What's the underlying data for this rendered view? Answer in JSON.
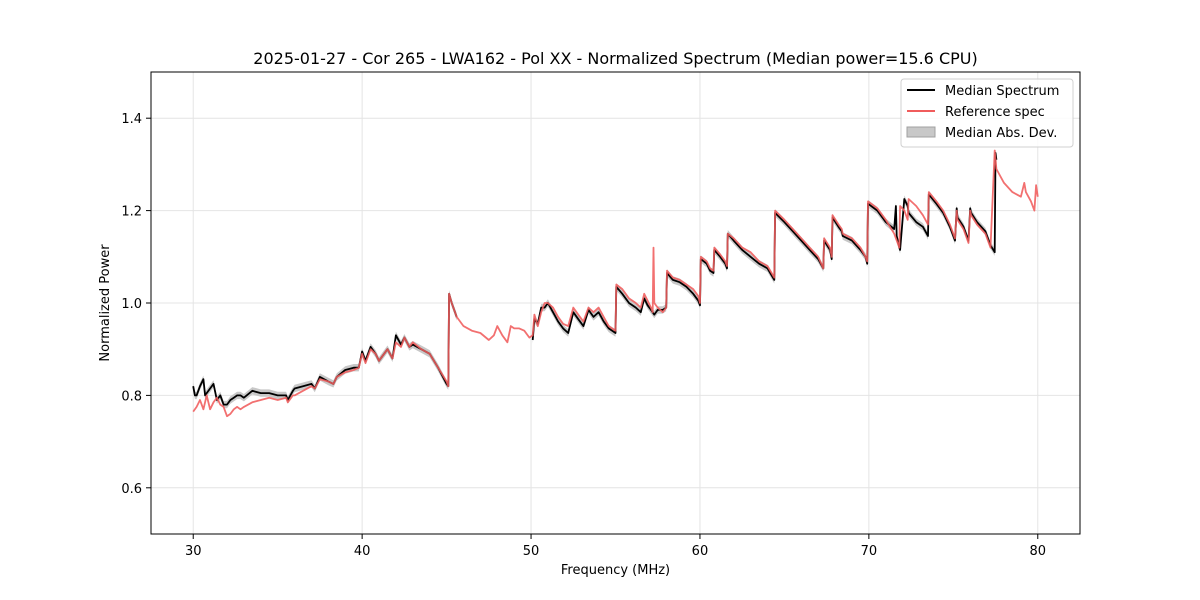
{
  "chart_data": {
    "type": "line",
    "title": "2025-01-27 - Cor 265 - LWA162 - Pol XX - Normalized Spectrum (Median power=15.6 CPU)",
    "xlabel": "Frequency (MHz)",
    "ylabel": "Normalized Power",
    "xlim": [
      27.5,
      82.5
    ],
    "ylim": [
      0.5,
      1.5
    ],
    "xticks": [
      30,
      40,
      50,
      60,
      70,
      80
    ],
    "yticks": [
      0.6,
      0.8,
      1.0,
      1.2,
      1.4
    ],
    "xtick_labels": [
      "30",
      "40",
      "50",
      "60",
      "70",
      "80"
    ],
    "ytick_labels": [
      "0.6",
      "0.8",
      "1.0",
      "1.2",
      "1.4"
    ],
    "grid": true,
    "legend_position": "top-right",
    "legend": [
      {
        "label": "Median Spectrum",
        "kind": "line",
        "color": "#000000"
      },
      {
        "label": "Reference spec",
        "kind": "line",
        "color": "#f05c5c"
      },
      {
        "label": "Median Abs. Dev.",
        "kind": "patch",
        "color": "#c8c8c8"
      }
    ],
    "series": [
      {
        "name": "Reference spec",
        "color": "#f05c5c",
        "x": [
          30.0,
          30.2,
          30.4,
          30.6,
          30.8,
          31.0,
          31.2,
          31.4,
          31.6,
          31.8,
          32.0,
          32.2,
          32.4,
          32.6,
          32.8,
          33.0,
          33.5,
          34.0,
          34.5,
          35.0,
          35.5,
          35.6,
          35.9,
          36.0,
          36.5,
          37.0,
          37.2,
          37.5,
          38.0,
          38.3,
          38.5,
          39.0,
          39.5,
          39.8,
          40.0,
          40.2,
          40.5,
          40.8,
          41.0,
          41.5,
          41.8,
          42.0,
          42.3,
          42.5,
          42.8,
          43.0,
          43.5,
          44.0,
          44.5,
          45.0,
          45.1,
          45.15,
          45.3,
          45.6,
          46.0,
          46.5,
          47.0,
          47.5,
          47.8,
          48.0,
          48.3,
          48.6,
          48.8,
          49.0,
          49.3,
          49.6,
          49.9,
          50.1,
          50.2,
          50.4,
          50.6,
          50.8,
          51.0,
          51.3,
          51.6,
          51.9,
          52.2,
          52.5,
          52.8,
          53.1,
          53.4,
          53.7,
          54.0,
          54.3,
          54.6,
          55.0,
          55.05,
          55.4,
          55.8,
          56.2,
          56.5,
          56.7,
          56.9,
          57.1,
          57.2,
          57.25,
          57.3,
          57.5,
          57.8,
          58.0,
          58.05,
          58.4,
          58.8,
          59.2,
          59.6,
          59.9,
          60.0,
          60.05,
          60.4,
          60.6,
          60.8,
          60.85,
          61.2,
          61.5,
          61.6,
          61.65,
          62.0,
          62.5,
          63.0,
          63.5,
          64.0,
          64.4,
          64.45,
          65.0,
          65.5,
          66.0,
          66.5,
          67.0,
          67.3,
          67.35,
          67.7,
          67.8,
          67.85,
          68.2,
          68.4,
          68.45,
          69.0,
          69.5,
          69.8,
          69.9,
          69.95,
          70.5,
          71.0,
          71.5,
          71.8,
          71.85,
          72.1,
          72.3,
          72.35,
          72.8,
          73.2,
          73.5,
          73.55,
          74.0,
          74.4,
          74.8,
          75.1,
          75.2,
          75.25,
          75.6,
          75.9,
          76.0,
          76.05,
          76.4,
          76.9,
          77.0,
          77.2,
          77.45,
          77.5,
          77.55,
          78.0,
          78.5,
          79.0,
          79.2,
          79.3,
          79.6,
          79.8,
          79.9,
          80.0
        ],
        "y": [
          0.765,
          0.775,
          0.79,
          0.77,
          0.8,
          0.77,
          0.785,
          0.795,
          0.78,
          0.775,
          0.755,
          0.76,
          0.77,
          0.775,
          0.77,
          0.775,
          0.785,
          0.79,
          0.795,
          0.79,
          0.795,
          0.785,
          0.8,
          0.8,
          0.81,
          0.82,
          0.815,
          0.835,
          0.83,
          0.825,
          0.84,
          0.85,
          0.855,
          0.86,
          0.89,
          0.87,
          0.9,
          0.89,
          0.875,
          0.9,
          0.88,
          0.915,
          0.905,
          0.925,
          0.905,
          0.915,
          0.9,
          0.89,
          0.86,
          0.83,
          0.82,
          1.02,
          1.0,
          0.97,
          0.95,
          0.94,
          0.935,
          0.92,
          0.93,
          0.95,
          0.93,
          0.915,
          0.95,
          0.945,
          0.945,
          0.94,
          0.925,
          0.93,
          0.975,
          0.95,
          0.98,
          1.0,
          1.0,
          0.99,
          0.97,
          0.955,
          0.95,
          0.99,
          0.975,
          0.96,
          0.99,
          0.98,
          0.99,
          0.97,
          0.95,
          0.94,
          1.04,
          1.03,
          1.01,
          1.0,
          0.99,
          1.02,
          1.005,
          0.99,
          0.98,
          1.12,
          1.0,
          0.99,
          0.98,
          0.99,
          1.07,
          1.055,
          1.05,
          1.04,
          1.03,
          1.015,
          1.0,
          1.1,
          1.09,
          1.075,
          1.07,
          1.12,
          1.105,
          1.09,
          1.08,
          1.15,
          1.14,
          1.12,
          1.11,
          1.09,
          1.08,
          1.055,
          1.2,
          1.18,
          1.16,
          1.14,
          1.12,
          1.1,
          1.075,
          1.14,
          1.12,
          1.1,
          1.19,
          1.17,
          1.16,
          1.15,
          1.14,
          1.12,
          1.1,
          1.09,
          1.22,
          1.205,
          1.18,
          1.15,
          1.12,
          1.21,
          1.2,
          1.18,
          1.225,
          1.21,
          1.19,
          1.17,
          1.24,
          1.22,
          1.2,
          1.17,
          1.14,
          1.2,
          1.18,
          1.16,
          1.13,
          1.2,
          1.19,
          1.17,
          1.15,
          1.14,
          1.12,
          1.33,
          1.31,
          1.29,
          1.26,
          1.24,
          1.23,
          1.26,
          1.24,
          1.22,
          1.2,
          1.255,
          1.23
        ],
        "dy": []
      },
      {
        "name": "Median Spectrum",
        "color": "#000000",
        "x": [
          30.0,
          30.1,
          30.2,
          30.4,
          30.6,
          30.7,
          30.8,
          31.0,
          31.2,
          31.4,
          31.6,
          31.8,
          32.0,
          32.2,
          32.4,
          32.6,
          32.8,
          33.0,
          33.5,
          34.0,
          34.5,
          35.0,
          35.5,
          35.6,
          35.9,
          36.0,
          36.5,
          37.0,
          37.2,
          37.5,
          38.0,
          38.3,
          38.5,
          39.0,
          39.5,
          39.8,
          40.0,
          40.2,
          40.5,
          40.8,
          41.0,
          41.5,
          41.8,
          42.0,
          42.3,
          42.5,
          42.8,
          43.0,
          43.5,
          44.0,
          44.5,
          45.0,
          45.1,
          45.15,
          45.3,
          45.6
        ],
        "y": [
          0.82,
          0.8,
          0.8,
          0.82,
          0.835,
          0.8,
          0.805,
          0.815,
          0.825,
          0.79,
          0.8,
          0.78,
          0.78,
          0.79,
          0.795,
          0.8,
          0.8,
          0.795,
          0.81,
          0.805,
          0.805,
          0.8,
          0.8,
          0.79,
          0.81,
          0.815,
          0.82,
          0.825,
          0.815,
          0.84,
          0.83,
          0.825,
          0.84,
          0.855,
          0.86,
          0.86,
          0.895,
          0.875,
          0.905,
          0.89,
          0.875,
          0.9,
          0.88,
          0.93,
          0.91,
          0.925,
          0.905,
          0.91,
          0.9,
          0.89,
          0.86,
          0.825,
          0.82,
          1.02,
          1.0,
          0.97
        ]
      },
      {
        "name": "Median Spectrum",
        "color": "#000000",
        "x": [
          50.1,
          50.2,
          50.4,
          50.6,
          50.8,
          51.0,
          51.3,
          51.6,
          51.9,
          52.2,
          52.5,
          52.8,
          53.1,
          53.4,
          53.7,
          54.0,
          54.3,
          54.6,
          55.0,
          55.05,
          55.4,
          55.8,
          56.2,
          56.5,
          56.7,
          56.9,
          57.1,
          57.3,
          57.5,
          57.8,
          58.0,
          58.05,
          58.4,
          58.8,
          59.2,
          59.6,
          59.9,
          60.0,
          60.05,
          60.4,
          60.6,
          60.8,
          60.85,
          61.2,
          61.5,
          61.6,
          61.65,
          62.0,
          62.5,
          63.0,
          63.5,
          64.0,
          64.4,
          64.45,
          65.0,
          65.5,
          66.0,
          66.5,
          67.0,
          67.3,
          67.35,
          67.7,
          67.8,
          67.85,
          68.2,
          68.4,
          68.45,
          69.0,
          69.5,
          69.8,
          69.9,
          69.95,
          70.5,
          71.0,
          71.5,
          71.6,
          71.65,
          71.8,
          71.85,
          72.1,
          72.3,
          72.35,
          72.8,
          73.2,
          73.5,
          73.55,
          74.0,
          74.4,
          74.8,
          75.1,
          75.2,
          75.25,
          75.6,
          75.9,
          76.0,
          76.05,
          76.4,
          76.9,
          77.0,
          77.2,
          77.45,
          77.5,
          77.55
        ],
        "y": [
          0.92,
          0.965,
          0.955,
          0.99,
          0.99,
          1.0,
          0.98,
          0.96,
          0.945,
          0.935,
          0.98,
          0.965,
          0.95,
          0.985,
          0.97,
          0.98,
          0.96,
          0.945,
          0.935,
          1.035,
          1.02,
          1.0,
          0.99,
          0.98,
          1.01,
          0.995,
          0.985,
          0.975,
          0.985,
          0.985,
          0.99,
          1.065,
          1.05,
          1.045,
          1.035,
          1.02,
          1.005,
          0.995,
          1.095,
          1.085,
          1.07,
          1.065,
          1.115,
          1.1,
          1.085,
          1.075,
          1.15,
          1.135,
          1.115,
          1.1,
          1.085,
          1.075,
          1.05,
          1.195,
          1.175,
          1.155,
          1.135,
          1.115,
          1.095,
          1.075,
          1.135,
          1.115,
          1.095,
          1.185,
          1.165,
          1.155,
          1.145,
          1.135,
          1.115,
          1.1,
          1.085,
          1.215,
          1.2,
          1.175,
          1.16,
          1.21,
          1.145,
          1.12,
          1.115,
          1.225,
          1.21,
          1.195,
          1.175,
          1.165,
          1.145,
          1.235,
          1.215,
          1.195,
          1.165,
          1.135,
          1.205,
          1.185,
          1.165,
          1.135,
          1.205,
          1.195,
          1.175,
          1.155,
          1.145,
          1.125,
          1.11,
          1.325,
          1.31
        ]
      }
    ]
  }
}
